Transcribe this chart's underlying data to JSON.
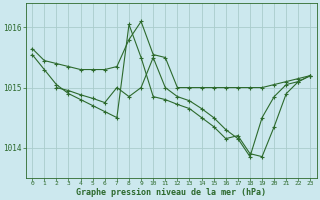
{
  "title": "Graphe pression niveau de la mer (hPa)",
  "bg_color": "#cce8ee",
  "grid_color": "#aacccc",
  "line_color": "#2d6a2d",
  "xlim": [
    -0.5,
    23.5
  ],
  "ylim": [
    1013.5,
    1016.4
  ],
  "yticks": [
    1014,
    1015,
    1016
  ],
  "xticks": [
    0,
    1,
    2,
    3,
    4,
    5,
    6,
    7,
    8,
    9,
    10,
    11,
    12,
    13,
    14,
    15,
    16,
    17,
    18,
    19,
    20,
    21,
    22,
    23
  ],
  "series": [
    {
      "x": [
        0,
        1,
        2,
        3,
        4,
        5,
        6,
        7,
        8,
        9,
        10,
        11,
        12,
        13,
        14,
        15,
        16,
        17,
        18,
        19,
        20,
        21,
        22,
        23
      ],
      "y": [
        1015.65,
        1015.45,
        1015.4,
        1015.35,
        1015.3,
        1015.3,
        1015.3,
        1015.35,
        1015.8,
        1016.1,
        1015.55,
        1015.5,
        1015.0,
        1015.0,
        1015.0,
        1015.0,
        1015.0,
        1015.0,
        1015.0,
        1015.0,
        1015.05,
        1015.1,
        1015.15,
        1015.2
      ]
    },
    {
      "x": [
        2,
        3,
        4,
        5,
        6,
        7,
        8,
        9,
        10,
        11,
        12,
        13,
        14,
        15,
        16,
        17,
        18,
        19,
        20,
        21,
        22,
        23
      ],
      "y": [
        1015.0,
        1014.95,
        1014.88,
        1014.82,
        1014.75,
        1015.0,
        1014.85,
        1015.0,
        1015.5,
        1015.0,
        1014.85,
        1014.78,
        1014.65,
        1014.5,
        1014.3,
        1014.15,
        1013.85,
        1014.5,
        1014.85,
        1015.05,
        1015.1,
        1015.2
      ]
    },
    {
      "x": [
        0,
        1,
        2,
        3,
        4,
        5,
        6,
        7,
        8,
        9,
        10,
        11,
        12,
        13,
        14,
        15,
        16,
        17,
        18,
        19,
        20,
        21,
        22,
        23
      ],
      "y": [
        1015.55,
        1015.3,
        1015.05,
        1014.9,
        1014.8,
        1014.7,
        1014.6,
        1014.5,
        1016.05,
        1015.5,
        1014.85,
        1014.8,
        1014.72,
        1014.65,
        1014.5,
        1014.35,
        1014.15,
        1014.2,
        1013.9,
        1013.85,
        1014.35,
        1014.9,
        1015.1,
        1015.2
      ]
    }
  ]
}
